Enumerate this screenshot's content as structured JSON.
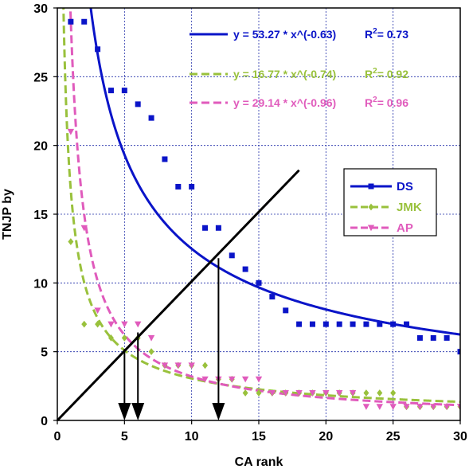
{
  "chart_data": {
    "type": "scatter",
    "title": "",
    "xlabel": "CA rank",
    "ylabel": "TNJP  by",
    "xlim": [
      0,
      30
    ],
    "ylim": [
      0,
      30
    ],
    "xticks": [
      0,
      5,
      10,
      15,
      20,
      25,
      30
    ],
    "yticks": [
      0,
      5,
      10,
      15,
      20,
      25,
      30
    ],
    "grid": true,
    "legend_position": "right-middle",
    "series": [
      {
        "name": "DS",
        "color": "#0a14c8",
        "marker": "square",
        "line": "solid",
        "points": [
          [
            1,
            29
          ],
          [
            2,
            29
          ],
          [
            3,
            27
          ],
          [
            4,
            24
          ],
          [
            5,
            24
          ],
          [
            6,
            23
          ],
          [
            7,
            22
          ],
          [
            8,
            19
          ],
          [
            9,
            17
          ],
          [
            10,
            17
          ],
          [
            11,
            14
          ],
          [
            12,
            14
          ],
          [
            13,
            12
          ],
          [
            14,
            11
          ],
          [
            15,
            10
          ],
          [
            16,
            9
          ],
          [
            17,
            8
          ],
          [
            18,
            7
          ],
          [
            19,
            7
          ],
          [
            20,
            7
          ],
          [
            21,
            7
          ],
          [
            22,
            7
          ],
          [
            23,
            7
          ],
          [
            24,
            7
          ],
          [
            25,
            7
          ],
          [
            26,
            7
          ],
          [
            27,
            6
          ],
          [
            28,
            6
          ],
          [
            29,
            6
          ],
          [
            30,
            5
          ]
        ],
        "fit": {
          "a": 53.27,
          "b": -0.63,
          "r2": 0.73
        },
        "equation": "y = 53.27 * x^(-0.63)",
        "r2_label": "R",
        "r2_value": "= 0.73"
      },
      {
        "name": "JMK",
        "color": "#99c13c",
        "marker": "diamond",
        "line": "dashed",
        "points": [
          [
            1,
            13
          ],
          [
            2,
            7
          ],
          [
            3,
            7
          ],
          [
            4,
            6
          ],
          [
            5,
            6
          ],
          [
            6,
            6
          ],
          [
            7,
            5
          ],
          [
            8,
            4
          ],
          [
            9,
            4
          ],
          [
            10,
            4
          ],
          [
            11,
            4
          ],
          [
            12,
            3
          ],
          [
            13,
            3
          ],
          [
            14,
            2
          ],
          [
            15,
            2
          ],
          [
            16,
            2
          ],
          [
            17,
            2
          ],
          [
            18,
            2
          ],
          [
            19,
            2
          ],
          [
            20,
            2
          ],
          [
            21,
            2
          ],
          [
            22,
            2
          ],
          [
            23,
            2
          ],
          [
            24,
            2
          ],
          [
            25,
            2
          ],
          [
            26,
            1
          ],
          [
            27,
            1
          ],
          [
            28,
            1
          ],
          [
            29,
            1
          ],
          [
            30,
            1
          ]
        ],
        "fit": {
          "a": 16.77,
          "b": -0.74,
          "r2": 0.92
        },
        "equation": "y = 16.77 * x^(-0.74)",
        "r2_label": "R",
        "r2_value": "= 0.92"
      },
      {
        "name": "AP",
        "color": "#e05bbc",
        "marker": "triangle-down",
        "line": "dashed",
        "points": [
          [
            1,
            21
          ],
          [
            2,
            14
          ],
          [
            3,
            8
          ],
          [
            4,
            7
          ],
          [
            5,
            7
          ],
          [
            6,
            7
          ],
          [
            7,
            6
          ],
          [
            8,
            4
          ],
          [
            9,
            4
          ],
          [
            10,
            4
          ],
          [
            11,
            3
          ],
          [
            12,
            3
          ],
          [
            13,
            3
          ],
          [
            14,
            3
          ],
          [
            15,
            3
          ],
          [
            16,
            2
          ],
          [
            17,
            2
          ],
          [
            18,
            2
          ],
          [
            19,
            2
          ],
          [
            20,
            2
          ],
          [
            21,
            2
          ],
          [
            22,
            2
          ],
          [
            23,
            1
          ],
          [
            24,
            1
          ],
          [
            25,
            1
          ],
          [
            26,
            1
          ],
          [
            27,
            1
          ],
          [
            28,
            1
          ],
          [
            29,
            1
          ],
          [
            30,
            1
          ]
        ],
        "fit": {
          "a": 29.14,
          "b": -0.96,
          "r2": 0.96
        },
        "equation": "y = 29.14 * x^(-0.96)",
        "r2_label": "R",
        "r2_value": "= 0.96"
      }
    ],
    "reference_line": {
      "color": "#000000",
      "from": [
        0,
        0
      ],
      "to": [
        18,
        18.2
      ]
    },
    "arrows": [
      {
        "x": 5,
        "y_from": 5.2,
        "y_to": 0
      },
      {
        "x": 6,
        "y_from": 6.4,
        "y_to": 0
      },
      {
        "x": 12,
        "y_from": 11.8,
        "y_to": 0
      }
    ]
  }
}
